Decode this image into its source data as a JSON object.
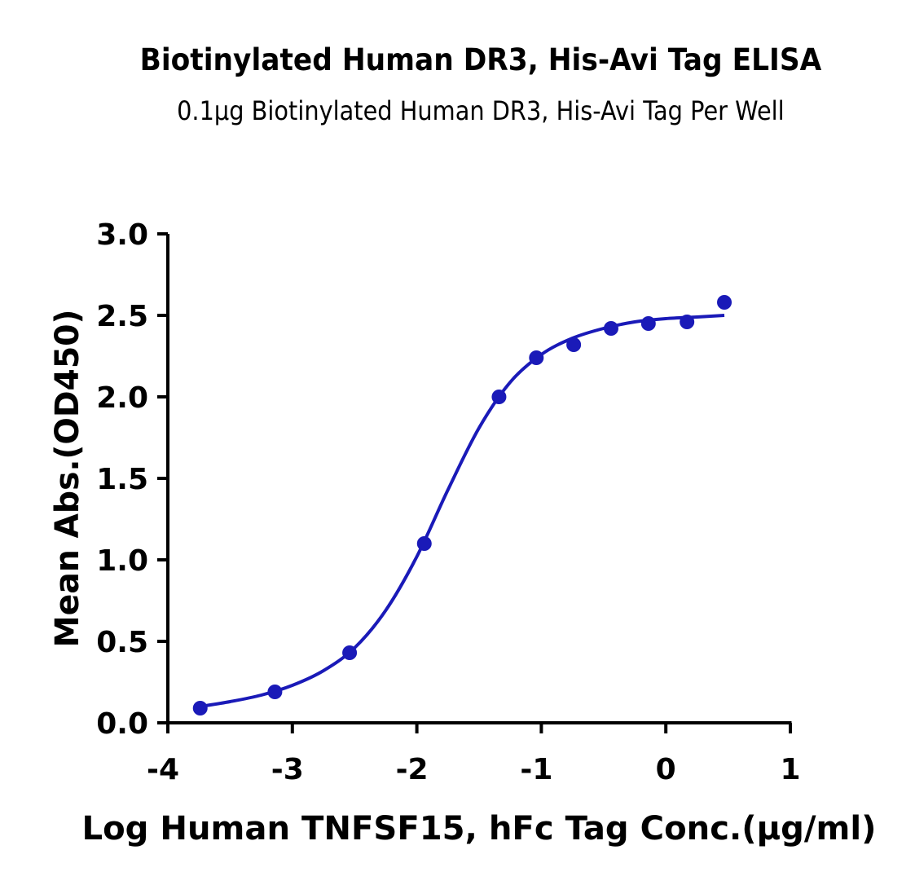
{
  "chart_data": {
    "type": "scatter",
    "title": "Biotinylated Human DR3, His-Avi Tag ELISA",
    "subtitle": "0.1μg Biotinylated Human DR3, His-Avi Tag Per Well",
    "xlabel": "Log Human TNFSF15, hFc Tag Conc.(μg/ml)",
    "ylabel": "Mean Abs.(OD450)",
    "xlim": [
      -4,
      1
    ],
    "ylim": [
      0,
      3
    ],
    "xticks": [
      "-4",
      "-3",
      "-2",
      "-1",
      "0",
      "1"
    ],
    "yticks": [
      "0.0",
      "0.5",
      "1.0",
      "1.5",
      "2.0",
      "2.5",
      "3.0"
    ],
    "grid": false,
    "colors": {
      "series": "#1a1ab8",
      "axis": "#000000"
    },
    "series": [
      {
        "style": "points",
        "x": [
          -3.74,
          -3.14,
          -2.54,
          -1.94,
          -1.34,
          -1.04,
          -0.74,
          -0.44,
          -0.14,
          0.17,
          0.47
        ],
        "y": [
          0.09,
          0.19,
          0.43,
          1.1,
          2.0,
          2.24,
          2.32,
          2.42,
          2.45,
          2.46,
          2.58
        ]
      },
      {
        "style": "curve",
        "fit": "4PL",
        "x": [
          -3.74,
          -3.5,
          -3.25,
          -3.0,
          -2.75,
          -2.5,
          -2.25,
          -2.0,
          -1.75,
          -1.5,
          -1.25,
          -1.0,
          -0.75,
          -0.5,
          -0.25,
          0.0,
          0.25,
          0.47
        ],
        "y": [
          0.1,
          0.13,
          0.17,
          0.23,
          0.32,
          0.46,
          0.69,
          1.02,
          1.43,
          1.81,
          2.09,
          2.26,
          2.36,
          2.42,
          2.46,
          2.48,
          2.49,
          2.5
        ]
      }
    ]
  }
}
